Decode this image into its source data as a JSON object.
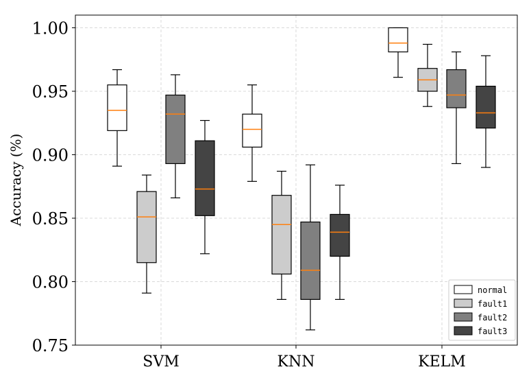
{
  "chart_data": {
    "type": "boxplot",
    "title": "",
    "xlabel": "",
    "ylabel": "Accuracy (%)",
    "ylim": [
      0.75,
      1.01
    ],
    "yticks": [
      "0.75",
      "0.80",
      "0.85",
      "0.90",
      "0.95",
      "1.00"
    ],
    "ytick_values": [
      0.75,
      0.8,
      0.85,
      0.9,
      0.95,
      1.0
    ],
    "grid": true,
    "legend_position": "bottom-right",
    "categories": [
      "SVM",
      "KNN",
      "KELM"
    ],
    "series": [
      {
        "name": "normal",
        "color": "#ffffff",
        "boxes": [
          {
            "whislo": 0.891,
            "q1": 0.919,
            "med": 0.935,
            "q3": 0.955,
            "whishi": 0.967
          },
          {
            "whislo": 0.879,
            "q1": 0.906,
            "med": 0.92,
            "q3": 0.932,
            "whishi": 0.955
          },
          {
            "whislo": 0.961,
            "q1": 0.981,
            "med": 0.988,
            "q3": 1.0,
            "whishi": 1.0
          }
        ]
      },
      {
        "name": "fault1",
        "color": "#cccccc",
        "boxes": [
          {
            "whislo": 0.791,
            "q1": 0.815,
            "med": 0.851,
            "q3": 0.871,
            "whishi": 0.884
          },
          {
            "whislo": 0.786,
            "q1": 0.806,
            "med": 0.845,
            "q3": 0.868,
            "whishi": 0.887
          },
          {
            "whislo": 0.938,
            "q1": 0.95,
            "med": 0.959,
            "q3": 0.968,
            "whishi": 0.987
          }
        ]
      },
      {
        "name": "fault2",
        "color": "#808080",
        "boxes": [
          {
            "whislo": 0.866,
            "q1": 0.893,
            "med": 0.932,
            "q3": 0.947,
            "whishi": 0.963
          },
          {
            "whislo": 0.762,
            "q1": 0.786,
            "med": 0.809,
            "q3": 0.847,
            "whishi": 0.892
          },
          {
            "whislo": 0.893,
            "q1": 0.937,
            "med": 0.947,
            "q3": 0.967,
            "whishi": 0.981
          }
        ]
      },
      {
        "name": "fault3",
        "color": "#444444",
        "boxes": [
          {
            "whislo": 0.822,
            "q1": 0.852,
            "med": 0.873,
            "q3": 0.911,
            "whishi": 0.927
          },
          {
            "whislo": 0.786,
            "q1": 0.82,
            "med": 0.839,
            "q3": 0.853,
            "whishi": 0.876
          },
          {
            "whislo": 0.89,
            "q1": 0.921,
            "med": 0.933,
            "q3": 0.954,
            "whishi": 0.978
          }
        ]
      }
    ],
    "median_color": "#ff7f0e"
  }
}
